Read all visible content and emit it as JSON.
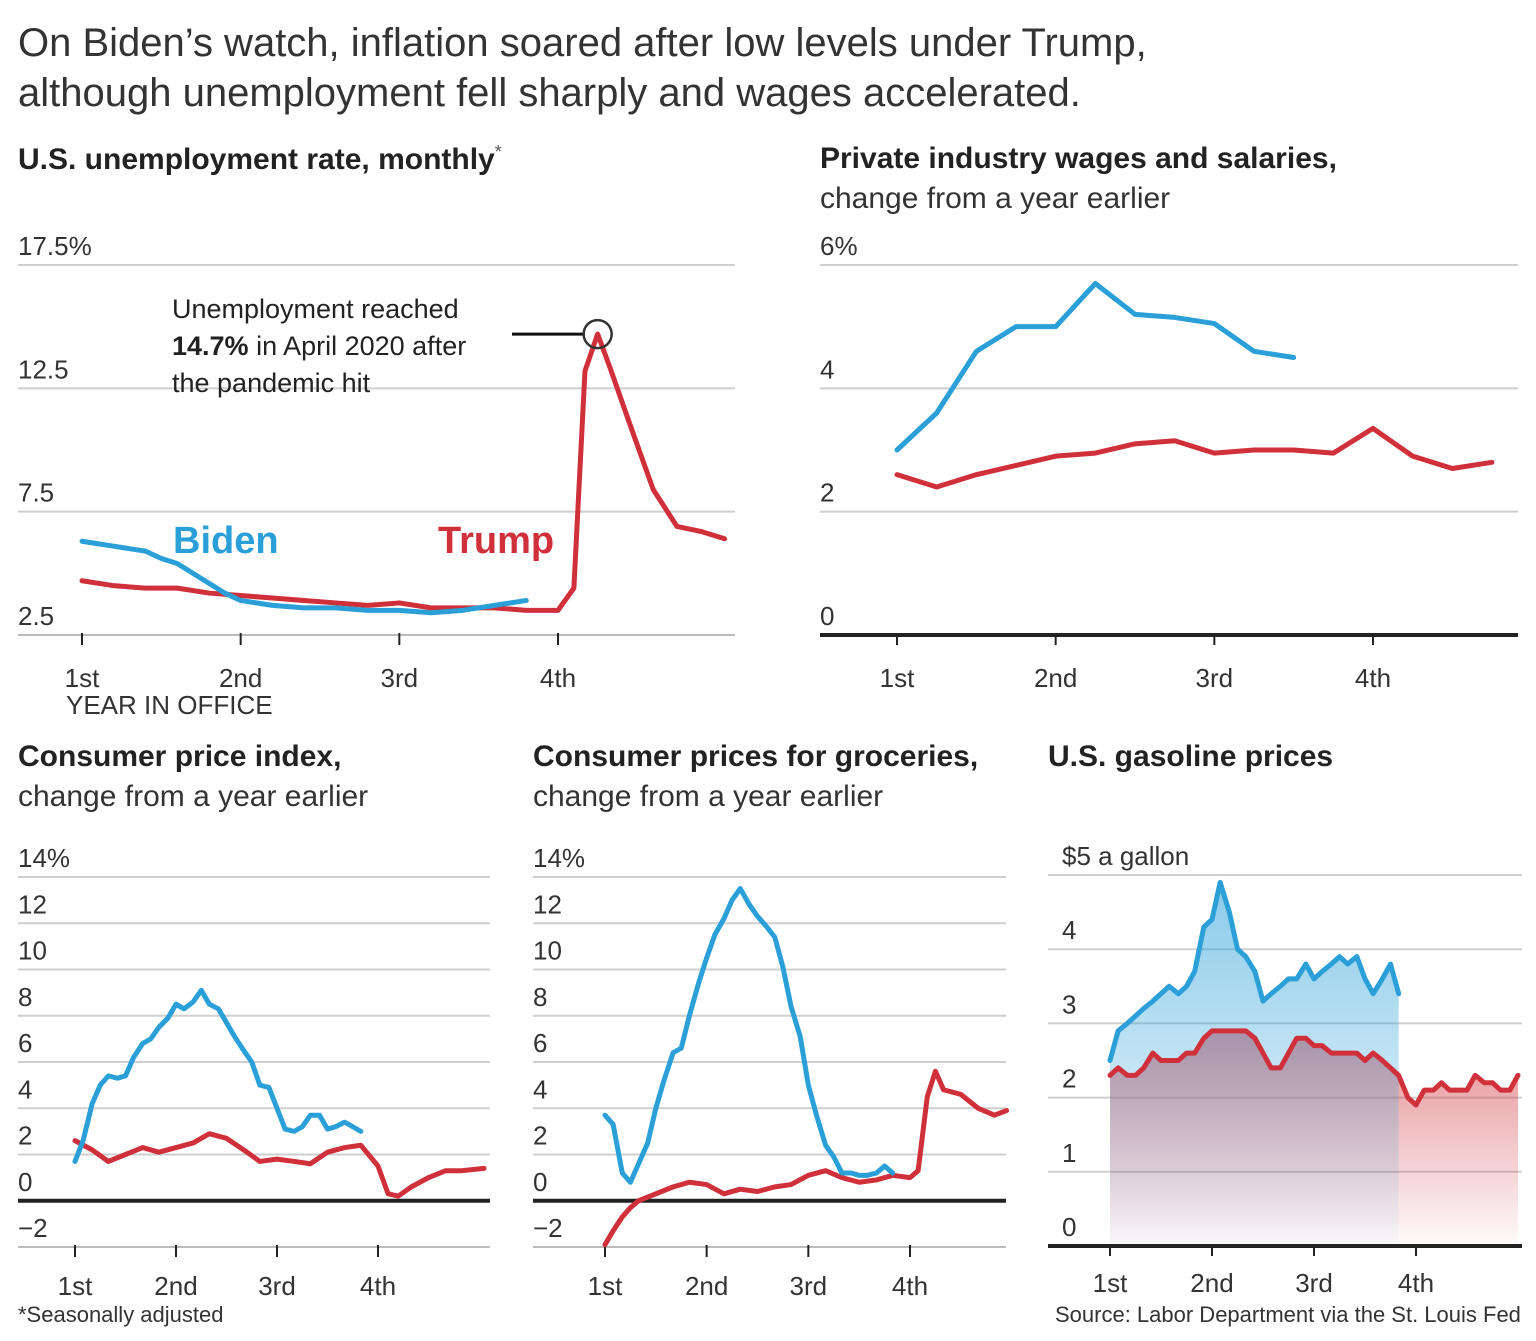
{
  "headline": {
    "line1": "On Biden’s watch, inflation soared after low levels under Trump,",
    "line2": "although unemployment fell sharply and wages accelerated."
  },
  "colors": {
    "biden": "#2a9fd8",
    "trump": "#d0303a",
    "grid": "#cfcfcf",
    "axis": "#222222"
  },
  "footnote": "*Seasonally adjusted",
  "source": "Source: Labor Department via the St. Louis Fed",
  "chart_data": [
    {
      "id": "unemployment",
      "type": "line",
      "title": "U.S. unemployment rate, monthly",
      "title_mark": "*",
      "subtitle": "",
      "y_unit_suffix": "%",
      "yticks": [
        2.5,
        7.5,
        12.5,
        17.5
      ],
      "ytick_labels": [
        "2.5",
        "7.5",
        "12.5",
        "17.5%"
      ],
      "ylim": [
        2.5,
        17.5
      ],
      "xlim": [
        1,
        5.1
      ],
      "xticks": [
        1,
        2,
        3,
        4
      ],
      "xtick_labels": [
        "1st",
        "2nd",
        "3rd",
        "4th"
      ],
      "xlabel": "YEAR IN OFFICE",
      "series_labels": {
        "biden": "Biden",
        "trump": "Trump"
      },
      "annotation": {
        "line1": "Unemployment reached",
        "bold": "14.7%",
        "line2_rest": " in April 2020 after",
        "line3": "the pandemic hit",
        "x": 4.25,
        "y": 14.7
      },
      "series": [
        {
          "name": "Biden",
          "key": "biden",
          "x": [
            1.0,
            1.1,
            1.2,
            1.3,
            1.4,
            1.5,
            1.6,
            1.7,
            1.8,
            1.9,
            2.0,
            2.2,
            2.4,
            2.6,
            2.8,
            3.0,
            3.2,
            3.4,
            3.6,
            3.8
          ],
          "values": [
            6.3,
            6.2,
            6.1,
            6.0,
            5.9,
            5.6,
            5.4,
            5.0,
            4.6,
            4.2,
            3.9,
            3.7,
            3.6,
            3.6,
            3.5,
            3.5,
            3.4,
            3.5,
            3.7,
            3.9
          ]
        },
        {
          "name": "Trump",
          "key": "trump",
          "x": [
            1.0,
            1.2,
            1.4,
            1.6,
            1.8,
            2.0,
            2.2,
            2.4,
            2.6,
            2.8,
            3.0,
            3.2,
            3.4,
            3.6,
            3.8,
            4.0,
            4.1,
            4.17,
            4.25,
            4.33,
            4.45,
            4.6,
            4.75,
            4.9,
            5.05
          ],
          "values": [
            4.7,
            4.5,
            4.4,
            4.4,
            4.2,
            4.1,
            4.0,
            3.9,
            3.8,
            3.7,
            3.8,
            3.6,
            3.6,
            3.6,
            3.5,
            3.5,
            4.4,
            13.2,
            14.7,
            13.3,
            11.1,
            8.4,
            6.9,
            6.7,
            6.4
          ]
        }
      ]
    },
    {
      "id": "wages",
      "type": "line",
      "title": "Private industry wages and salaries,",
      "subtitle": "change from a year earlier",
      "yticks": [
        0,
        2,
        4,
        6
      ],
      "ytick_labels": [
        "0",
        "2",
        "4",
        "6%"
      ],
      "ylim": [
        0,
        6
      ],
      "xlim": [
        0.5,
        5.2
      ],
      "xticks": [
        1,
        2,
        3,
        4
      ],
      "xtick_labels": [
        "1st",
        "2nd",
        "3rd",
        "4th"
      ],
      "series": [
        {
          "name": "Biden",
          "key": "biden",
          "x": [
            1.0,
            1.25,
            1.5,
            1.75,
            2.0,
            2.25,
            2.5,
            2.75,
            3.0,
            3.25,
            3.5
          ],
          "values": [
            3.0,
            3.6,
            4.6,
            5.0,
            5.0,
            5.7,
            5.2,
            5.15,
            5.05,
            4.6,
            4.5
          ]
        },
        {
          "name": "Trump",
          "key": "trump",
          "x": [
            1.0,
            1.25,
            1.5,
            1.75,
            2.0,
            2.25,
            2.5,
            2.75,
            3.0,
            3.25,
            3.5,
            3.75,
            4.0,
            4.25,
            4.5,
            4.75
          ],
          "values": [
            2.6,
            2.4,
            2.6,
            2.75,
            2.9,
            2.95,
            3.1,
            3.15,
            2.95,
            3.0,
            3.0,
            2.95,
            3.35,
            2.9,
            2.7,
            2.8
          ]
        }
      ]
    },
    {
      "id": "cpi",
      "type": "line",
      "title": "Consumer price index,",
      "subtitle": "change from a year earlier",
      "yticks": [
        -2,
        0,
        2,
        4,
        6,
        8,
        10,
        12,
        14
      ],
      "ytick_labels": [
        "−2",
        "0",
        "2",
        "4",
        "6",
        "8",
        "10",
        "12",
        "14%"
      ],
      "ylim": [
        -2,
        14
      ],
      "xlim": [
        0.95,
        5.1
      ],
      "xticks": [
        1,
        2,
        3,
        4
      ],
      "xtick_labels": [
        "1st",
        "2nd",
        "3rd",
        "4th"
      ],
      "series": [
        {
          "name": "Biden",
          "key": "biden",
          "x": [
            1.0,
            1.08,
            1.17,
            1.25,
            1.33,
            1.42,
            1.5,
            1.58,
            1.67,
            1.75,
            1.83,
            1.92,
            2.0,
            2.08,
            2.17,
            2.25,
            2.33,
            2.42,
            2.5,
            2.58,
            2.67,
            2.75,
            2.83,
            2.92,
            3.0,
            3.08,
            3.17,
            3.25,
            3.33,
            3.42,
            3.5,
            3.58,
            3.67,
            3.75,
            3.83
          ],
          "values": [
            1.7,
            2.6,
            4.2,
            5.0,
            5.4,
            5.3,
            5.4,
            6.2,
            6.8,
            7.0,
            7.5,
            7.9,
            8.5,
            8.3,
            8.6,
            9.1,
            8.5,
            8.3,
            7.7,
            7.1,
            6.5,
            6.0,
            5.0,
            4.9,
            4.0,
            3.1,
            3.0,
            3.2,
            3.7,
            3.7,
            3.1,
            3.2,
            3.4,
            3.2,
            3.0
          ]
        },
        {
          "name": "Trump",
          "key": "trump",
          "x": [
            1.0,
            1.17,
            1.33,
            1.5,
            1.67,
            1.83,
            2.0,
            2.17,
            2.33,
            2.5,
            2.67,
            2.83,
            3.0,
            3.17,
            3.33,
            3.5,
            3.67,
            3.83,
            4.0,
            4.1,
            4.2,
            4.33,
            4.5,
            4.67,
            4.83,
            5.05
          ],
          "values": [
            2.6,
            2.2,
            1.7,
            2.0,
            2.3,
            2.1,
            2.3,
            2.5,
            2.9,
            2.7,
            2.2,
            1.7,
            1.8,
            1.7,
            1.6,
            2.1,
            2.3,
            2.4,
            1.5,
            0.3,
            0.2,
            0.6,
            1.0,
            1.3,
            1.3,
            1.4
          ]
        }
      ]
    },
    {
      "id": "groceries",
      "type": "line",
      "title": "Consumer prices for groceries,",
      "subtitle": "change from a year earlier",
      "yticks": [
        -2,
        0,
        2,
        4,
        6,
        8,
        10,
        12,
        14
      ],
      "ytick_labels": [
        "−2",
        "0",
        "2",
        "4",
        "6",
        "8",
        "10",
        "12",
        "14%"
      ],
      "ylim": [
        -2,
        14
      ],
      "xlim": [
        0.95,
        5.0
      ],
      "xticks": [
        1,
        2,
        3,
        4
      ],
      "xtick_labels": [
        "1st",
        "2nd",
        "3rd",
        "4th"
      ],
      "series": [
        {
          "name": "Biden",
          "key": "biden",
          "x": [
            1.0,
            1.08,
            1.17,
            1.25,
            1.33,
            1.42,
            1.5,
            1.58,
            1.67,
            1.75,
            1.83,
            1.92,
            2.0,
            2.08,
            2.17,
            2.25,
            2.33,
            2.42,
            2.5,
            2.58,
            2.67,
            2.75,
            2.83,
            2.92,
            3.0,
            3.08,
            3.17,
            3.25,
            3.33,
            3.42,
            3.5,
            3.58,
            3.67,
            3.75,
            3.83
          ],
          "values": [
            3.7,
            3.3,
            1.2,
            0.8,
            1.6,
            2.5,
            4.0,
            5.2,
            6.4,
            6.6,
            8.0,
            9.4,
            10.5,
            11.5,
            12.2,
            13.0,
            13.5,
            12.8,
            12.3,
            11.9,
            11.4,
            10.1,
            8.4,
            7.1,
            5.0,
            3.7,
            2.4,
            1.9,
            1.2,
            1.2,
            1.1,
            1.1,
            1.2,
            1.5,
            1.2
          ]
        },
        {
          "name": "Trump",
          "key": "trump",
          "x": [
            1.0,
            1.08,
            1.17,
            1.25,
            1.33,
            1.5,
            1.67,
            1.83,
            2.0,
            2.17,
            2.33,
            2.5,
            2.67,
            2.83,
            3.0,
            3.17,
            3.33,
            3.5,
            3.67,
            3.83,
            4.0,
            4.08,
            4.17,
            4.25,
            4.33,
            4.5,
            4.67,
            4.83,
            4.95
          ],
          "values": [
            -1.9,
            -1.3,
            -0.7,
            -0.3,
            0.0,
            0.3,
            0.6,
            0.8,
            0.7,
            0.3,
            0.5,
            0.4,
            0.6,
            0.7,
            1.1,
            1.3,
            1.0,
            0.8,
            0.9,
            1.1,
            1.0,
            1.3,
            4.5,
            5.6,
            4.8,
            4.6,
            4.0,
            3.7,
            3.9
          ]
        }
      ]
    },
    {
      "id": "gasoline",
      "type": "area",
      "title": "U.S. gasoline prices",
      "subtitle": "",
      "yticks": [
        0,
        1,
        2,
        3,
        4,
        5
      ],
      "ytick_labels": [
        "0",
        "1",
        "2",
        "3",
        "4",
        "$5 a gallon"
      ],
      "ylim": [
        0,
        5
      ],
      "xlim": [
        0.9,
        5.05
      ],
      "xticks": [
        1,
        2,
        3,
        4
      ],
      "xtick_labels": [
        "1st",
        "2nd",
        "3rd",
        "4th"
      ],
      "series": [
        {
          "name": "Biden",
          "key": "biden",
          "x": [
            1.0,
            1.08,
            1.17,
            1.25,
            1.33,
            1.42,
            1.5,
            1.58,
            1.67,
            1.75,
            1.83,
            1.92,
            2.0,
            2.08,
            2.17,
            2.25,
            2.33,
            2.42,
            2.5,
            2.58,
            2.67,
            2.75,
            2.83,
            2.92,
            3.0,
            3.08,
            3.17,
            3.25,
            3.33,
            3.42,
            3.5,
            3.58,
            3.67,
            3.75,
            3.83
          ],
          "values": [
            2.5,
            2.9,
            3.0,
            3.1,
            3.2,
            3.3,
            3.4,
            3.5,
            3.4,
            3.5,
            3.7,
            4.3,
            4.4,
            4.9,
            4.5,
            4.0,
            3.9,
            3.7,
            3.3,
            3.4,
            3.5,
            3.6,
            3.6,
            3.8,
            3.6,
            3.7,
            3.8,
            3.9,
            3.8,
            3.9,
            3.6,
            3.4,
            3.6,
            3.8,
            3.4
          ]
        },
        {
          "name": "Trump",
          "key": "trump",
          "x": [
            1.0,
            1.08,
            1.17,
            1.25,
            1.33,
            1.42,
            1.5,
            1.58,
            1.67,
            1.75,
            1.83,
            1.92,
            2.0,
            2.08,
            2.17,
            2.25,
            2.33,
            2.42,
            2.5,
            2.58,
            2.67,
            2.75,
            2.83,
            2.92,
            3.0,
            3.08,
            3.17,
            3.25,
            3.33,
            3.42,
            3.5,
            3.58,
            3.67,
            3.75,
            3.83,
            3.92,
            4.0,
            4.08,
            4.17,
            4.25,
            4.33,
            4.42,
            4.5,
            4.58,
            4.67,
            4.75,
            4.83,
            4.92,
            5.0
          ],
          "values": [
            2.3,
            2.4,
            2.3,
            2.3,
            2.4,
            2.6,
            2.5,
            2.5,
            2.5,
            2.6,
            2.6,
            2.8,
            2.9,
            2.9,
            2.9,
            2.9,
            2.9,
            2.8,
            2.6,
            2.4,
            2.4,
            2.6,
            2.8,
            2.8,
            2.7,
            2.7,
            2.6,
            2.6,
            2.6,
            2.6,
            2.5,
            2.6,
            2.5,
            2.4,
            2.3,
            2.0,
            1.9,
            2.1,
            2.1,
            2.2,
            2.1,
            2.1,
            2.1,
            2.3,
            2.2,
            2.2,
            2.1,
            2.1,
            2.3
          ]
        }
      ]
    }
  ]
}
